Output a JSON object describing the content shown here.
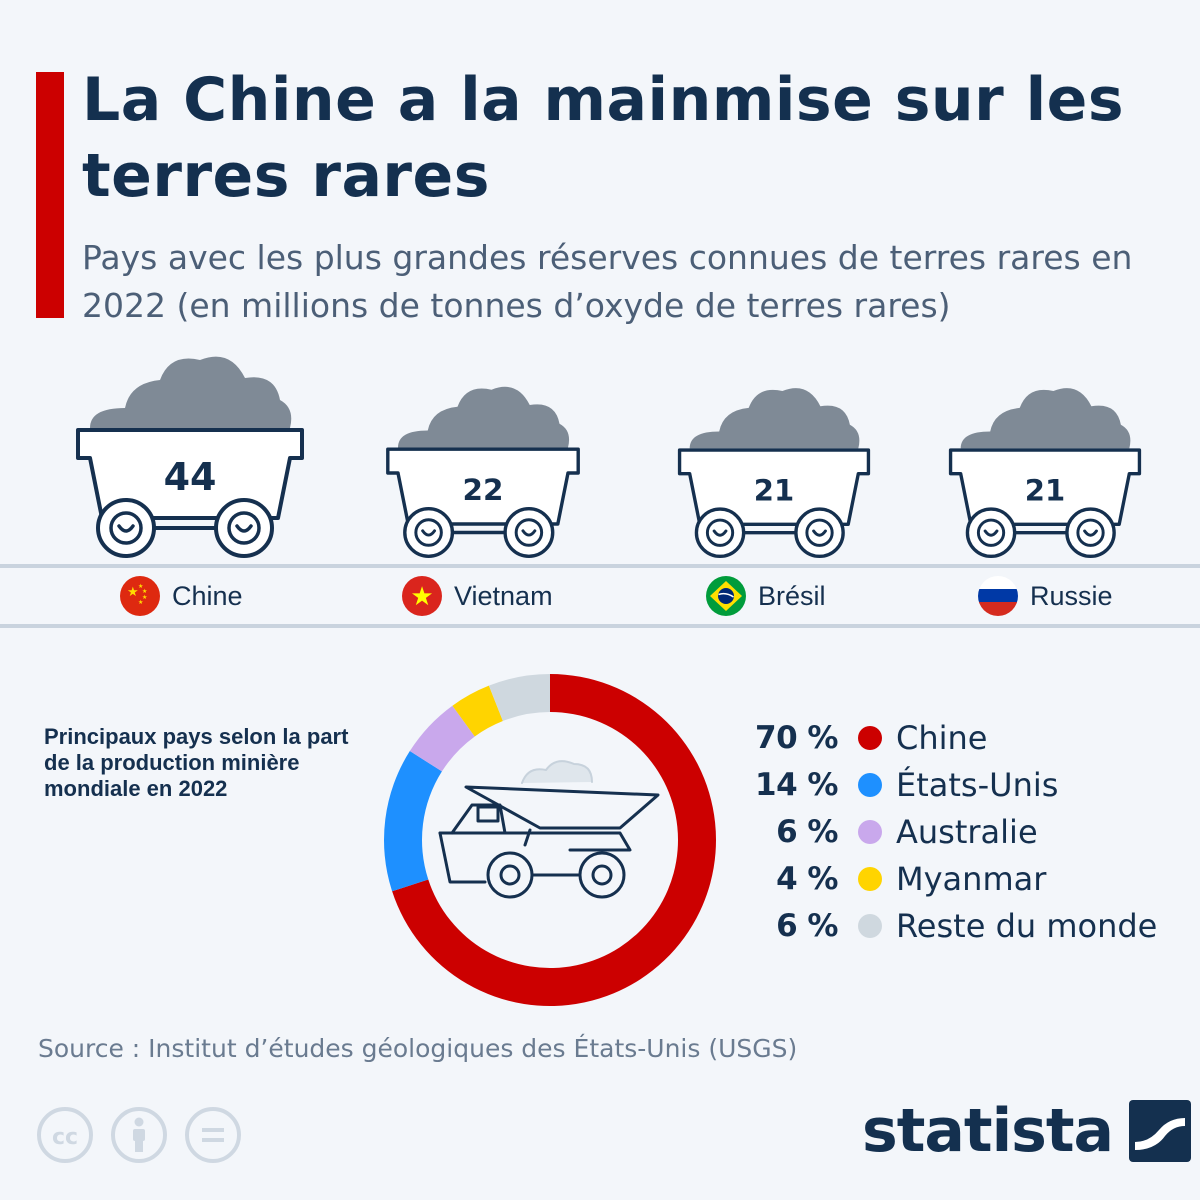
{
  "header": {
    "title": "La Chine a la mainmise sur les terres rares",
    "subtitle": "Pays avec les plus grandes réserves connues de terres rares en 2022 (en millions de tonnes d’oxyde de terres rares)"
  },
  "chart_data": [
    {
      "type": "bar",
      "title": "Pays avec les plus grandes réserves connues de terres rares en 2022 (en millions de tonnes d’oxyde de terres rares)",
      "categories": [
        "Chine",
        "Vietnam",
        "Brésil",
        "Russie"
      ],
      "values": [
        44,
        22,
        21,
        21
      ]
    },
    {
      "type": "pie",
      "title": "Principaux pays selon la part de la production minière mondiale en 2022",
      "categories": [
        "Chine",
        "États-Unis",
        "Australie",
        "Myanmar",
        "Reste du monde"
      ],
      "values": [
        70,
        14,
        6,
        4,
        6
      ],
      "value_labels": [
        "70 %",
        "14 %",
        "6 %",
        "4 %",
        "6 %"
      ],
      "colors": [
        "#cc0000",
        "#1e90ff",
        "#c9a8ec",
        "#ffd400",
        "#cfd8df"
      ]
    }
  ],
  "flags": [
    "china-flag-icon",
    "vietnam-flag-icon",
    "brazil-flag-icon",
    "russia-flag-icon"
  ],
  "source": "Source : Institut d’études géologiques des États-Unis (USGS)",
  "license_icons": [
    "creative-commons-icon",
    "attribution-icon",
    "no-derivatives-icon"
  ],
  "brand": {
    "name": "statista"
  }
}
